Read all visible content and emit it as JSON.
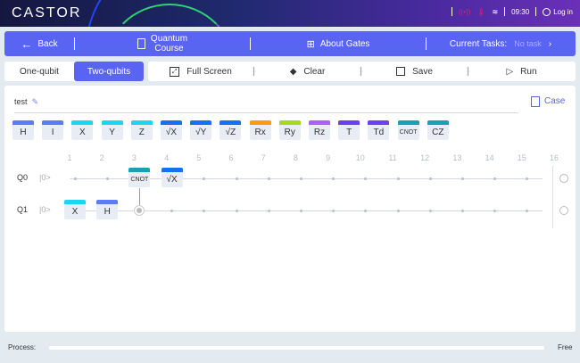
{
  "header": {
    "logo": "CASTOR",
    "time": "09:30",
    "login": "Log in",
    "icons": [
      "signal-icon",
      "thermometer-icon",
      "wifi-icon",
      "user-icon"
    ],
    "alert_color": "#e0206a"
  },
  "nav": {
    "back": "Back",
    "course_line1": "Quantum",
    "course_line2": "Course",
    "about": "About Gates",
    "tasks_label": "Current Tasks:",
    "tasks_value": "No task"
  },
  "toolbar": {
    "tabs": [
      {
        "label": "One-qubit",
        "active": false
      },
      {
        "label": "Two-qubits",
        "active": true
      }
    ],
    "full_screen": "Full Screen",
    "clear": "Clear",
    "save": "Save",
    "run": "Run"
  },
  "editor": {
    "name": "test",
    "case": "Case"
  },
  "gates": [
    {
      "label": "H",
      "color": "#5b7cf5"
    },
    {
      "label": "I",
      "color": "#5b7cf5"
    },
    {
      "label": "X",
      "color": "#1ad6f0"
    },
    {
      "label": "Y",
      "color": "#1ad6f0"
    },
    {
      "label": "Z",
      "color": "#1ad6f0"
    },
    {
      "label": "√X",
      "color": "#1670f0"
    },
    {
      "label": "√Y",
      "color": "#1670f0"
    },
    {
      "label": "√Z",
      "color": "#1670f0"
    },
    {
      "label": "Rx",
      "color": "#ff9a10"
    },
    {
      "label": "Ry",
      "color": "#a8d820"
    },
    {
      "label": "Rz",
      "color": "#a860f8"
    },
    {
      "label": "T",
      "color": "#6a40f0"
    },
    {
      "label": "Td",
      "color": "#6a40f0"
    },
    {
      "label": "CNOT",
      "color": "#1aa0b0"
    },
    {
      "label": "CZ",
      "color": "#1aa0b0"
    }
  ],
  "circuit": {
    "columns": [
      "1",
      "2",
      "3",
      "4",
      "5",
      "6",
      "7",
      "8",
      "9",
      "10",
      "11",
      "12",
      "13",
      "14",
      "15",
      "16"
    ],
    "qubits": [
      {
        "label": "Q0",
        "state": "|0>"
      },
      {
        "label": "Q1",
        "state": "|0>"
      }
    ],
    "placed": [
      {
        "qubit": 0,
        "col": 3,
        "label": "CNOT",
        "color": "#1aa0b0",
        "control": 1
      },
      {
        "qubit": 0,
        "col": 4,
        "label": "√X",
        "color": "#1670f0"
      },
      {
        "qubit": 1,
        "col": 1,
        "label": "X",
        "color": "#1ad6f0"
      },
      {
        "qubit": 1,
        "col": 2,
        "label": "H",
        "color": "#5b7cf5"
      }
    ]
  },
  "footer": {
    "process_label": "Process:",
    "progress": 0,
    "status": "Free"
  }
}
